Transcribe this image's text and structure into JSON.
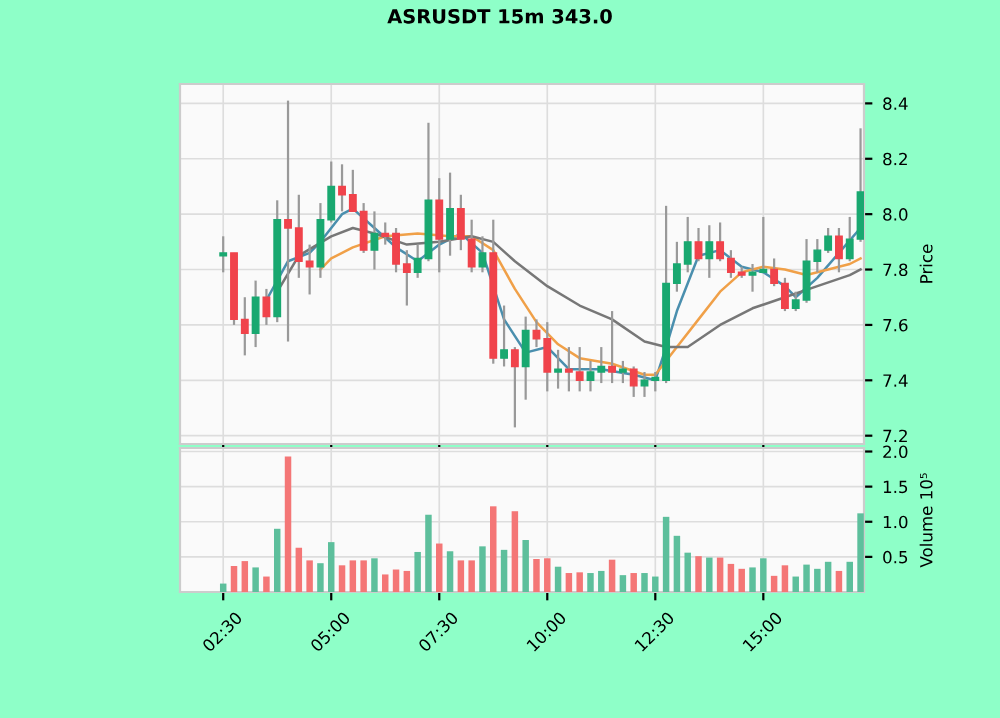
{
  "chart_data": [
    {
      "type": "candlestick",
      "title": "ASRUSDT 15m 343.0",
      "ylabel": "Price",
      "x": [
        2.5,
        2.75,
        3.0,
        3.25,
        3.5,
        3.75,
        4.0,
        4.25,
        4.5,
        4.75,
        5.0,
        5.25,
        5.5,
        5.75,
        6.0,
        6.25,
        6.5,
        6.75,
        7.0,
        7.25,
        7.5,
        7.75,
        8.0,
        8.25,
        8.5,
        8.75,
        9.0,
        9.25,
        9.5,
        9.75,
        10.0,
        10.25,
        10.5,
        10.75,
        11.0,
        11.25,
        11.5,
        11.75,
        12.0,
        12.25,
        12.5,
        12.75,
        13.0,
        13.25,
        13.5,
        13.75,
        14.0,
        14.25,
        14.5,
        14.75,
        15.0,
        15.25,
        15.5,
        15.75,
        16.0,
        16.25,
        16.5,
        16.75,
        17.0,
        17.25
      ],
      "ohlc": [
        [
          7.85,
          7.92,
          7.79,
          7.86
        ],
        [
          7.86,
          7.86,
          7.6,
          7.62
        ],
        [
          7.62,
          7.7,
          7.49,
          7.57
        ],
        [
          7.57,
          7.76,
          7.52,
          7.7
        ],
        [
          7.7,
          7.73,
          7.6,
          7.63
        ],
        [
          7.63,
          8.05,
          7.61,
          7.98
        ],
        [
          7.98,
          8.41,
          7.54,
          7.95
        ],
        [
          7.95,
          8.07,
          7.77,
          7.83
        ],
        [
          7.83,
          7.89,
          7.71,
          7.81
        ],
        [
          7.81,
          8.04,
          7.77,
          7.98
        ],
        [
          7.98,
          8.19,
          7.97,
          8.1
        ],
        [
          8.1,
          8.18,
          8.01,
          8.07
        ],
        [
          8.07,
          8.16,
          8.01,
          8.01
        ],
        [
          8.01,
          8.04,
          7.86,
          7.87
        ],
        [
          7.87,
          8.01,
          7.8,
          7.93
        ],
        [
          7.93,
          7.97,
          7.89,
          7.92
        ],
        [
          7.93,
          7.95,
          7.79,
          7.82
        ],
        [
          7.82,
          7.87,
          7.67,
          7.79
        ],
        [
          7.79,
          7.89,
          7.77,
          7.84
        ],
        [
          7.84,
          8.33,
          7.83,
          8.05
        ],
        [
          8.05,
          8.13,
          7.79,
          7.91
        ],
        [
          7.91,
          8.15,
          7.85,
          8.02
        ],
        [
          8.02,
          8.07,
          7.87,
          7.91
        ],
        [
          7.91,
          7.98,
          7.79,
          7.81
        ],
        [
          7.81,
          7.92,
          7.79,
          7.86
        ],
        [
          7.86,
          7.98,
          7.46,
          7.48
        ],
        [
          7.48,
          7.67,
          7.45,
          7.51
        ],
        [
          7.51,
          7.52,
          7.23,
          7.45
        ],
        [
          7.45,
          7.63,
          7.33,
          7.58
        ],
        [
          7.58,
          7.62,
          7.52,
          7.55
        ],
        [
          7.55,
          7.61,
          7.36,
          7.43
        ],
        [
          7.43,
          7.51,
          7.37,
          7.44
        ],
        [
          7.44,
          7.52,
          7.36,
          7.43
        ],
        [
          7.43,
          7.52,
          7.36,
          7.4
        ],
        [
          7.4,
          7.47,
          7.36,
          7.43
        ],
        [
          7.43,
          7.52,
          7.39,
          7.45
        ],
        [
          7.45,
          7.65,
          7.39,
          7.43
        ],
        [
          7.43,
          7.47,
          7.39,
          7.44
        ],
        [
          7.44,
          7.45,
          7.34,
          7.38
        ],
        [
          7.38,
          7.43,
          7.34,
          7.4
        ],
        [
          7.4,
          7.43,
          7.36,
          7.41
        ],
        [
          7.4,
          8.03,
          7.39,
          7.75
        ],
        [
          7.75,
          7.9,
          7.72,
          7.82
        ],
        [
          7.82,
          7.99,
          7.79,
          7.9
        ],
        [
          7.9,
          7.95,
          7.83,
          7.84
        ],
        [
          7.84,
          7.96,
          7.77,
          7.9
        ],
        [
          7.9,
          7.97,
          7.83,
          7.84
        ],
        [
          7.84,
          7.87,
          7.77,
          7.79
        ],
        [
          7.79,
          7.81,
          7.77,
          7.78
        ],
        [
          7.78,
          7.82,
          7.72,
          7.79
        ],
        [
          7.79,
          7.99,
          7.79,
          7.8
        ],
        [
          7.8,
          7.84,
          7.74,
          7.75
        ],
        [
          7.75,
          7.77,
          7.65,
          7.66
        ],
        [
          7.66,
          7.72,
          7.65,
          7.69
        ],
        [
          7.69,
          7.91,
          7.68,
          7.83
        ],
        [
          7.83,
          7.91,
          7.79,
          7.87
        ],
        [
          7.87,
          7.95,
          7.86,
          7.92
        ],
        [
          7.92,
          7.95,
          7.79,
          7.84
        ],
        [
          7.84,
          7.99,
          7.83,
          7.91
        ],
        [
          7.91,
          8.31,
          7.9,
          8.08
        ]
      ],
      "colors": [
        "#19a870",
        "#f0434b",
        "#f0434b",
        "#19a870",
        "#f0434b",
        "#19a870",
        "#f0434b",
        "#f0434b",
        "#f0434b",
        "#19a870",
        "#19a870",
        "#f0434b",
        "#f0434b",
        "#f0434b",
        "#19a870",
        "#f0434b",
        "#f0434b",
        "#f0434b",
        "#19a870",
        "#19a870",
        "#f0434b",
        "#19a870",
        "#f0434b",
        "#f0434b",
        "#19a870",
        "#f0434b",
        "#19a870",
        "#f0434b",
        "#19a870",
        "#f0434b",
        "#f0434b",
        "#19a870",
        "#f0434b",
        "#f0434b",
        "#19a870",
        "#19a870",
        "#f0434b",
        "#19a870",
        "#f0434b",
        "#19a870",
        "#19a870",
        "#19a870",
        "#19a870",
        "#19a870",
        "#f0434b",
        "#19a870",
        "#f0434b",
        "#f0434b",
        "#f0434b",
        "#19a870",
        "#19a870",
        "#f0434b",
        "#f0434b",
        "#19a870",
        "#19a870",
        "#19a870",
        "#19a870",
        "#f0434b",
        "#19a870",
        "#19a870"
      ],
      "series": [
        {
          "type": "line",
          "color": "#4a8fae",
          "x": [
            3.5,
            4.0,
            4.5,
            4.75,
            5.25,
            5.5,
            6.0,
            6.5,
            7.0,
            7.5,
            8.0,
            8.5,
            8.75,
            9.0,
            9.5,
            10.0,
            10.5,
            11.25,
            12.0,
            12.5,
            12.75,
            13.0,
            13.5,
            14.0,
            14.5,
            15.0,
            15.5,
            15.75,
            16.25,
            16.75,
            17.25
          ],
          "values": [
            7.69,
            7.83,
            7.86,
            7.9,
            8.0,
            8.02,
            7.95,
            7.88,
            7.83,
            7.89,
            7.93,
            7.86,
            null,
            7.62,
            7.5,
            7.52,
            7.44,
            7.44,
            7.42,
            7.4,
            7.52,
            7.65,
            7.85,
            7.87,
            7.81,
            7.79,
            7.74,
            7.7,
            7.77,
            7.86,
            7.95
          ]
        },
        {
          "type": "line",
          "color": "#f0a048",
          "x": [
            4.75,
            5.0,
            5.5,
            6.25,
            7.0,
            7.75,
            8.25,
            8.75,
            9.25,
            9.75,
            10.25,
            10.75,
            11.5,
            12.25,
            12.5,
            13.0,
            13.5,
            14.0,
            14.5,
            15.0,
            15.5,
            16.0,
            16.5,
            17.0,
            17.25
          ],
          "values": [
            7.8,
            7.84,
            7.88,
            7.92,
            7.93,
            7.92,
            7.92,
            7.87,
            7.73,
            7.61,
            7.53,
            7.48,
            7.46,
            7.42,
            7.42,
            7.52,
            7.62,
            7.72,
            7.79,
            7.81,
            7.8,
            7.78,
            7.8,
            7.82,
            7.84
          ]
        },
        {
          "type": "line",
          "color": "#777777",
          "x": [
            3.75,
            4.25,
            5.0,
            5.5,
            6.0,
            6.75,
            7.5,
            8.25,
            8.75,
            9.25,
            10.0,
            10.75,
            11.5,
            12.25,
            12.75,
            13.25,
            14.0,
            14.75,
            15.5,
            16.25,
            17.0,
            17.25
          ],
          "values": [
            7.72,
            7.85,
            7.92,
            7.95,
            7.93,
            7.89,
            7.9,
            7.92,
            7.9,
            7.83,
            7.74,
            7.67,
            7.62,
            7.54,
            7.52,
            7.52,
            7.6,
            7.66,
            7.7,
            7.74,
            7.78,
            7.8
          ]
        }
      ],
      "xlim": [
        1.5,
        17.33
      ],
      "xticks": [
        {
          "value": 2.5,
          "label": null
        },
        {
          "value": 5,
          "label": null
        },
        {
          "value": 7.5,
          "label": null
        },
        {
          "value": 10,
          "label": null
        },
        {
          "value": 12.5,
          "label": null
        },
        {
          "value": 15,
          "label": null
        }
      ],
      "ylim": [
        7.17,
        8.47
      ],
      "yticks": [
        7.2,
        7.4,
        7.6,
        7.8,
        {
          "value": 8,
          "label": "8.0"
        },
        8.2,
        8.4
      ],
      "grid": true,
      "tick_labels": "y"
    },
    {
      "type": "bar",
      "ylabel": "Volume 10⁵",
      "x": [
        2.5,
        2.75,
        3.0,
        3.25,
        3.5,
        3.75,
        4.0,
        4.25,
        4.5,
        4.75,
        5.0,
        5.25,
        5.5,
        5.75,
        6.0,
        6.25,
        6.5,
        6.75,
        7.0,
        7.25,
        7.5,
        7.75,
        8.0,
        8.25,
        8.5,
        8.75,
        9.0,
        9.25,
        9.5,
        9.75,
        10.0,
        10.25,
        10.5,
        10.75,
        11.0,
        11.25,
        11.5,
        11.75,
        12.0,
        12.25,
        12.5,
        12.75,
        13.0,
        13.25,
        13.5,
        13.75,
        14.0,
        14.25,
        14.5,
        14.75,
        15.0,
        15.25,
        15.5,
        15.75,
        16.0,
        16.25,
        16.5,
        16.75,
        17.0,
        17.25
      ],
      "values": [
        0.12,
        0.37,
        0.44,
        0.35,
        0.22,
        0.9,
        1.93,
        0.63,
        0.45,
        0.41,
        0.71,
        0.38,
        0.45,
        0.45,
        0.48,
        0.25,
        0.32,
        0.3,
        0.57,
        1.1,
        0.69,
        0.58,
        0.45,
        0.45,
        0.65,
        1.22,
        0.6,
        1.15,
        0.74,
        0.47,
        0.48,
        0.36,
        0.27,
        0.28,
        0.27,
        0.3,
        0.46,
        0.24,
        0.27,
        0.27,
        0.22,
        1.07,
        0.8,
        0.56,
        0.51,
        0.49,
        0.49,
        0.4,
        0.33,
        0.35,
        0.48,
        0.23,
        0.38,
        0.22,
        0.39,
        0.33,
        0.43,
        0.3,
        0.43,
        1.12
      ],
      "colors": [
        "#5dbf9c",
        "#f47676",
        "#f47676",
        "#5dbf9c",
        "#f47676",
        "#5dbf9c",
        "#f47676",
        "#f47676",
        "#f47676",
        "#5dbf9c",
        "#5dbf9c",
        "#f47676",
        "#f47676",
        "#f47676",
        "#5dbf9c",
        "#f47676",
        "#f47676",
        "#f47676",
        "#5dbf9c",
        "#5dbf9c",
        "#f47676",
        "#5dbf9c",
        "#f47676",
        "#f47676",
        "#5dbf9c",
        "#f47676",
        "#5dbf9c",
        "#f47676",
        "#5dbf9c",
        "#f47676",
        "#f47676",
        "#5dbf9c",
        "#f47676",
        "#f47676",
        "#5dbf9c",
        "#5dbf9c",
        "#f47676",
        "#5dbf9c",
        "#f47676",
        "#5dbf9c",
        "#5dbf9c",
        "#5dbf9c",
        "#5dbf9c",
        "#5dbf9c",
        "#f47676",
        "#5dbf9c",
        "#f47676",
        "#f47676",
        "#f47676",
        "#5dbf9c",
        "#5dbf9c",
        "#f47676",
        "#f47676",
        "#5dbf9c",
        "#5dbf9c",
        "#5dbf9c",
        "#5dbf9c",
        "#f47676",
        "#5dbf9c",
        "#5dbf9c"
      ],
      "xlim": [
        1.5,
        17.33
      ],
      "xticks": [
        {
          "value": 2.5,
          "label": "02:30"
        },
        {
          "value": 5,
          "label": "05:00"
        },
        {
          "value": 7.5,
          "label": "07:30"
        },
        {
          "value": 10,
          "label": "10:00"
        },
        {
          "value": 12.5,
          "label": "12:30"
        },
        {
          "value": 15,
          "label": "15:00"
        }
      ],
      "ylim": [
        0,
        2.05
      ],
      "yticks": [
        {
          "value": 0.5,
          "label": "0.5"
        },
        {
          "value": 1,
          "label": "1.0"
        },
        {
          "value": 1.5,
          "label": "1.5"
        },
        {
          "value": 2,
          "label": "2.0"
        }
      ],
      "grid": true
    }
  ]
}
